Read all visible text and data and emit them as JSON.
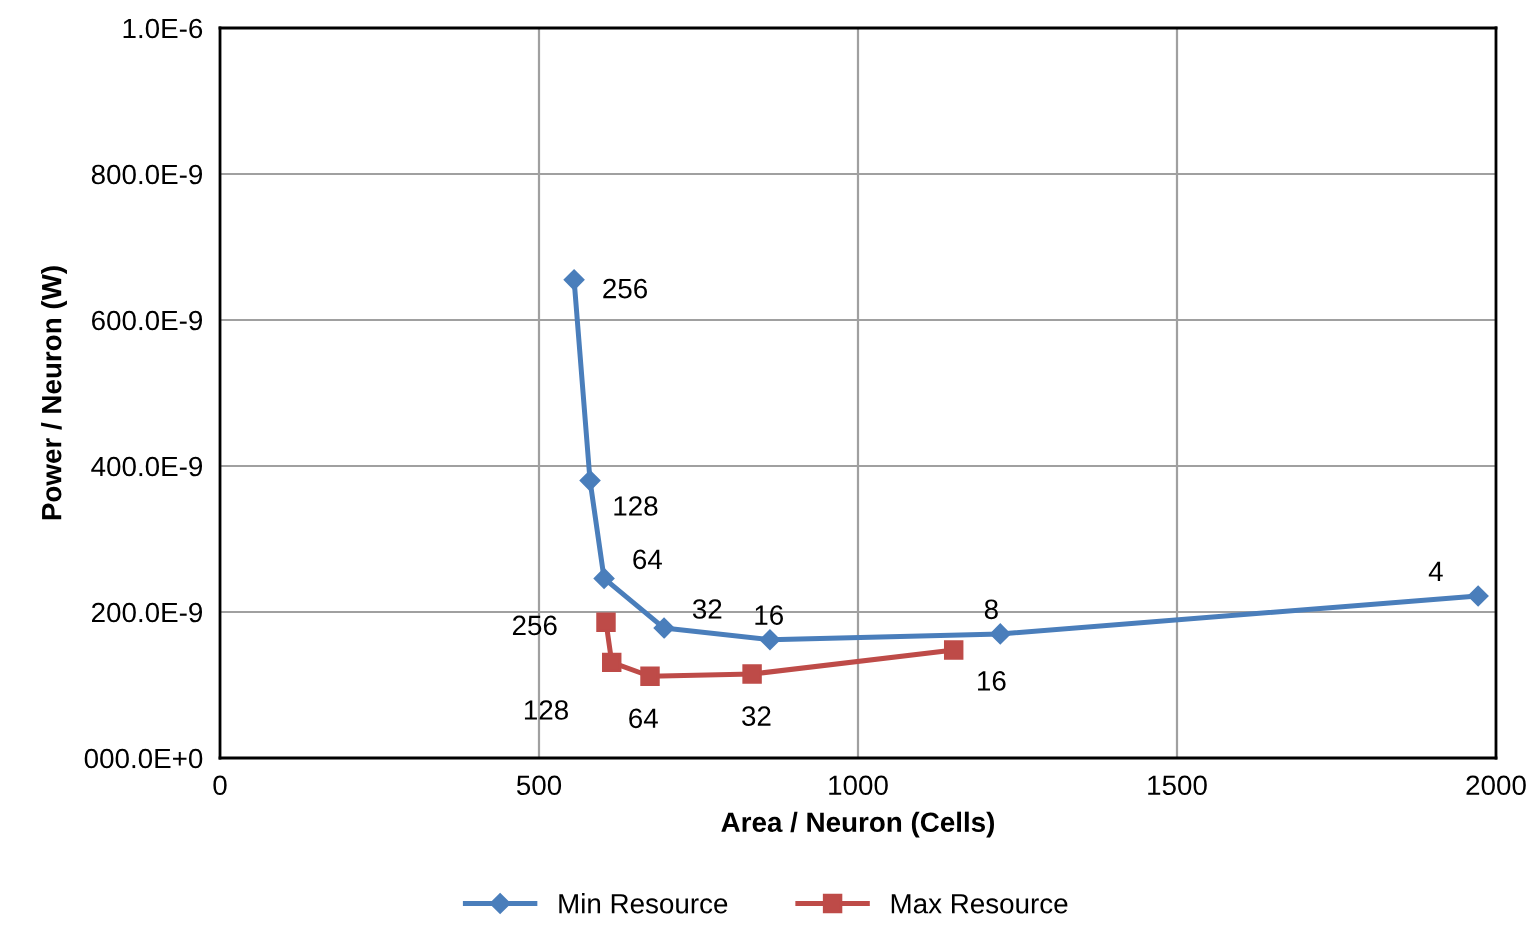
{
  "chart_data": {
    "type": "line",
    "xlabel": "Area / Neuron (Cells)",
    "ylabel": "Power / Neuron (W)",
    "xlim": [
      0,
      2000
    ],
    "xticks": [
      0,
      500,
      1000,
      1500,
      2000
    ],
    "ylim": [
      0,
      1e-06
    ],
    "yticks": [
      {
        "value": 0,
        "label": "000.0E+0"
      },
      {
        "value": 2e-07,
        "label": "200.0E-9"
      },
      {
        "value": 4e-07,
        "label": "400.0E-9"
      },
      {
        "value": 6e-07,
        "label": "600.0E-9"
      },
      {
        "value": 8e-07,
        "label": "800.0E-9"
      },
      {
        "value": 1e-06,
        "label": "1.0E-6"
      }
    ],
    "grid": true,
    "legend": "bottom",
    "series": [
      {
        "name": "Min Resource",
        "color": "#4a7ebb",
        "marker": "diamond",
        "x": [
          555,
          580,
          602,
          696,
          862,
          1223,
          1972
        ],
        "values": [
          6.55e-07,
          3.8e-07,
          2.46e-07,
          1.78e-07,
          1.62e-07,
          1.7e-07,
          2.22e-07
        ]
      },
      {
        "name": "Max Resource",
        "color": "#be4b48",
        "marker": "square",
        "x": [
          605,
          614,
          674,
          834,
          1150
        ],
        "values": [
          1.86e-07,
          1.31e-07,
          1.12e-07,
          1.15e-07,
          1.48e-07
        ]
      }
    ],
    "annotations": [
      {
        "text": "256",
        "x": 555,
        "y": 6.55e-07
      },
      {
        "text": "128",
        "x": 580,
        "y": 3.8e-07
      },
      {
        "text": "64",
        "x": 602,
        "y": 2.46e-07
      },
      {
        "text": "32",
        "x": 696,
        "y": 1.78e-07
      },
      {
        "text": "16",
        "x": 862,
        "y": 1.62e-07
      },
      {
        "text": "8",
        "x": 1223,
        "y": 1.7e-07
      },
      {
        "text": "4",
        "x": 1972,
        "y": 2.22e-07
      },
      {
        "text": "256",
        "x": 605,
        "y": 1.86e-07
      },
      {
        "text": "128",
        "x": 614,
        "y": 1.31e-07
      },
      {
        "text": "64",
        "x": 674,
        "y": 1.12e-07
      },
      {
        "text": "32",
        "x": 834,
        "y": 1.15e-07
      },
      {
        "text": "16",
        "x": 1150,
        "y": 1.48e-07
      }
    ]
  }
}
